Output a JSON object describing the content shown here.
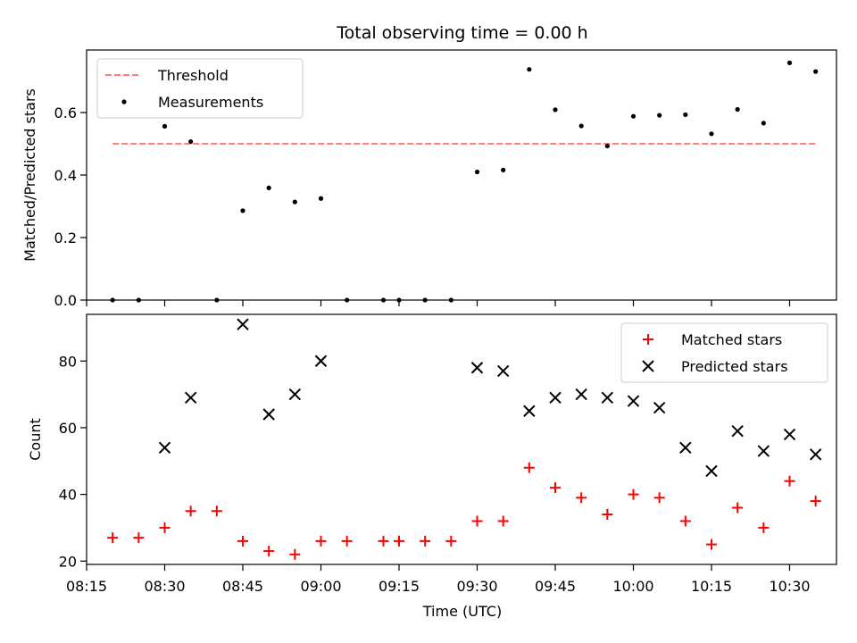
{
  "chart_data": [
    {
      "type": "scatter",
      "title": "Total observing time = 0.00 h",
      "ylabel": "Matched/Predicted stars",
      "xlabel": "",
      "ylim": [
        0,
        0.8
      ],
      "yticks": [
        "0.0",
        "0.2",
        "0.4",
        "0.6"
      ],
      "ytick_values": [
        0,
        0.2,
        0.4,
        0.6
      ],
      "legend": {
        "placement": "upper-left",
        "entries": [
          "Threshold",
          "Measurements"
        ]
      },
      "series": [
        {
          "name": "Threshold",
          "kind": "dashed-line",
          "color": "#ff7f7f",
          "x": [
            "08:20",
            "10:35"
          ],
          "y": [
            0.5,
            0.5
          ]
        },
        {
          "name": "Measurements",
          "kind": "dot",
          "color": "#000000",
          "x": [
            "08:20",
            "08:25",
            "08:30",
            "08:35",
            "08:40",
            "08:45",
            "08:50",
            "08:55",
            "09:00",
            "09:05",
            "09:12",
            "09:15",
            "09:20",
            "09:25",
            "09:30",
            "09:35",
            "09:40",
            "09:45",
            "09:50",
            "09:55",
            "10:00",
            "10:05",
            "10:10",
            "10:15",
            "10:20",
            "10:25",
            "10:30",
            "10:35"
          ],
          "y": [
            0.0,
            0.0,
            0.556,
            0.507,
            0.0,
            0.286,
            0.359,
            0.314,
            0.325,
            0.0,
            0.0,
            0.0,
            0.0,
            0.0,
            0.41,
            0.416,
            0.738,
            0.609,
            0.557,
            0.493,
            0.588,
            0.591,
            0.593,
            0.532,
            0.61,
            0.566,
            0.759,
            0.731
          ]
        }
      ]
    },
    {
      "type": "scatter",
      "title": "",
      "ylabel": "Count",
      "xlabel": "Time (UTC)",
      "ylim": [
        19,
        94
      ],
      "yticks": [
        "20",
        "40",
        "60",
        "80"
      ],
      "ytick_values": [
        20,
        40,
        60,
        80
      ],
      "xlim": [
        "08:15",
        "10:39"
      ],
      "xticks": [
        "08:15",
        "08:30",
        "08:45",
        "09:00",
        "09:15",
        "09:30",
        "09:45",
        "10:00",
        "10:15",
        "10:30"
      ],
      "legend": {
        "placement": "upper-right",
        "entries": [
          "Matched stars",
          "Predicted stars"
        ]
      },
      "series": [
        {
          "name": "Matched stars",
          "kind": "plus",
          "color": "#ff0000",
          "x": [
            "08:20",
            "08:25",
            "08:30",
            "08:35",
            "08:40",
            "08:45",
            "08:50",
            "08:55",
            "09:00",
            "09:05",
            "09:12",
            "09:15",
            "09:20",
            "09:25",
            "09:30",
            "09:35",
            "09:40",
            "09:45",
            "09:50",
            "09:55",
            "10:00",
            "10:05",
            "10:10",
            "10:15",
            "10:20",
            "10:25",
            "10:30",
            "10:35"
          ],
          "y": [
            27,
            27,
            30,
            35,
            35,
            26,
            23,
            22,
            26,
            26,
            26,
            26,
            26,
            26,
            32,
            32,
            48,
            42,
            39,
            34,
            40,
            39,
            32,
            25,
            36,
            30,
            44,
            38
          ]
        },
        {
          "name": "Predicted stars",
          "kind": "x",
          "color": "#000000",
          "x": [
            "08:30",
            "08:35",
            "08:45",
            "08:50",
            "08:55",
            "09:00",
            "09:30",
            "09:35",
            "09:40",
            "09:45",
            "09:50",
            "09:55",
            "10:00",
            "10:05",
            "10:10",
            "10:15",
            "10:20",
            "10:25",
            "10:30",
            "10:35"
          ],
          "y": [
            54,
            69,
            91,
            64,
            70,
            80,
            78,
            77,
            65,
            69,
            70,
            69,
            68,
            66,
            54,
            47,
            59,
            53,
            58,
            52
          ]
        }
      ]
    }
  ]
}
